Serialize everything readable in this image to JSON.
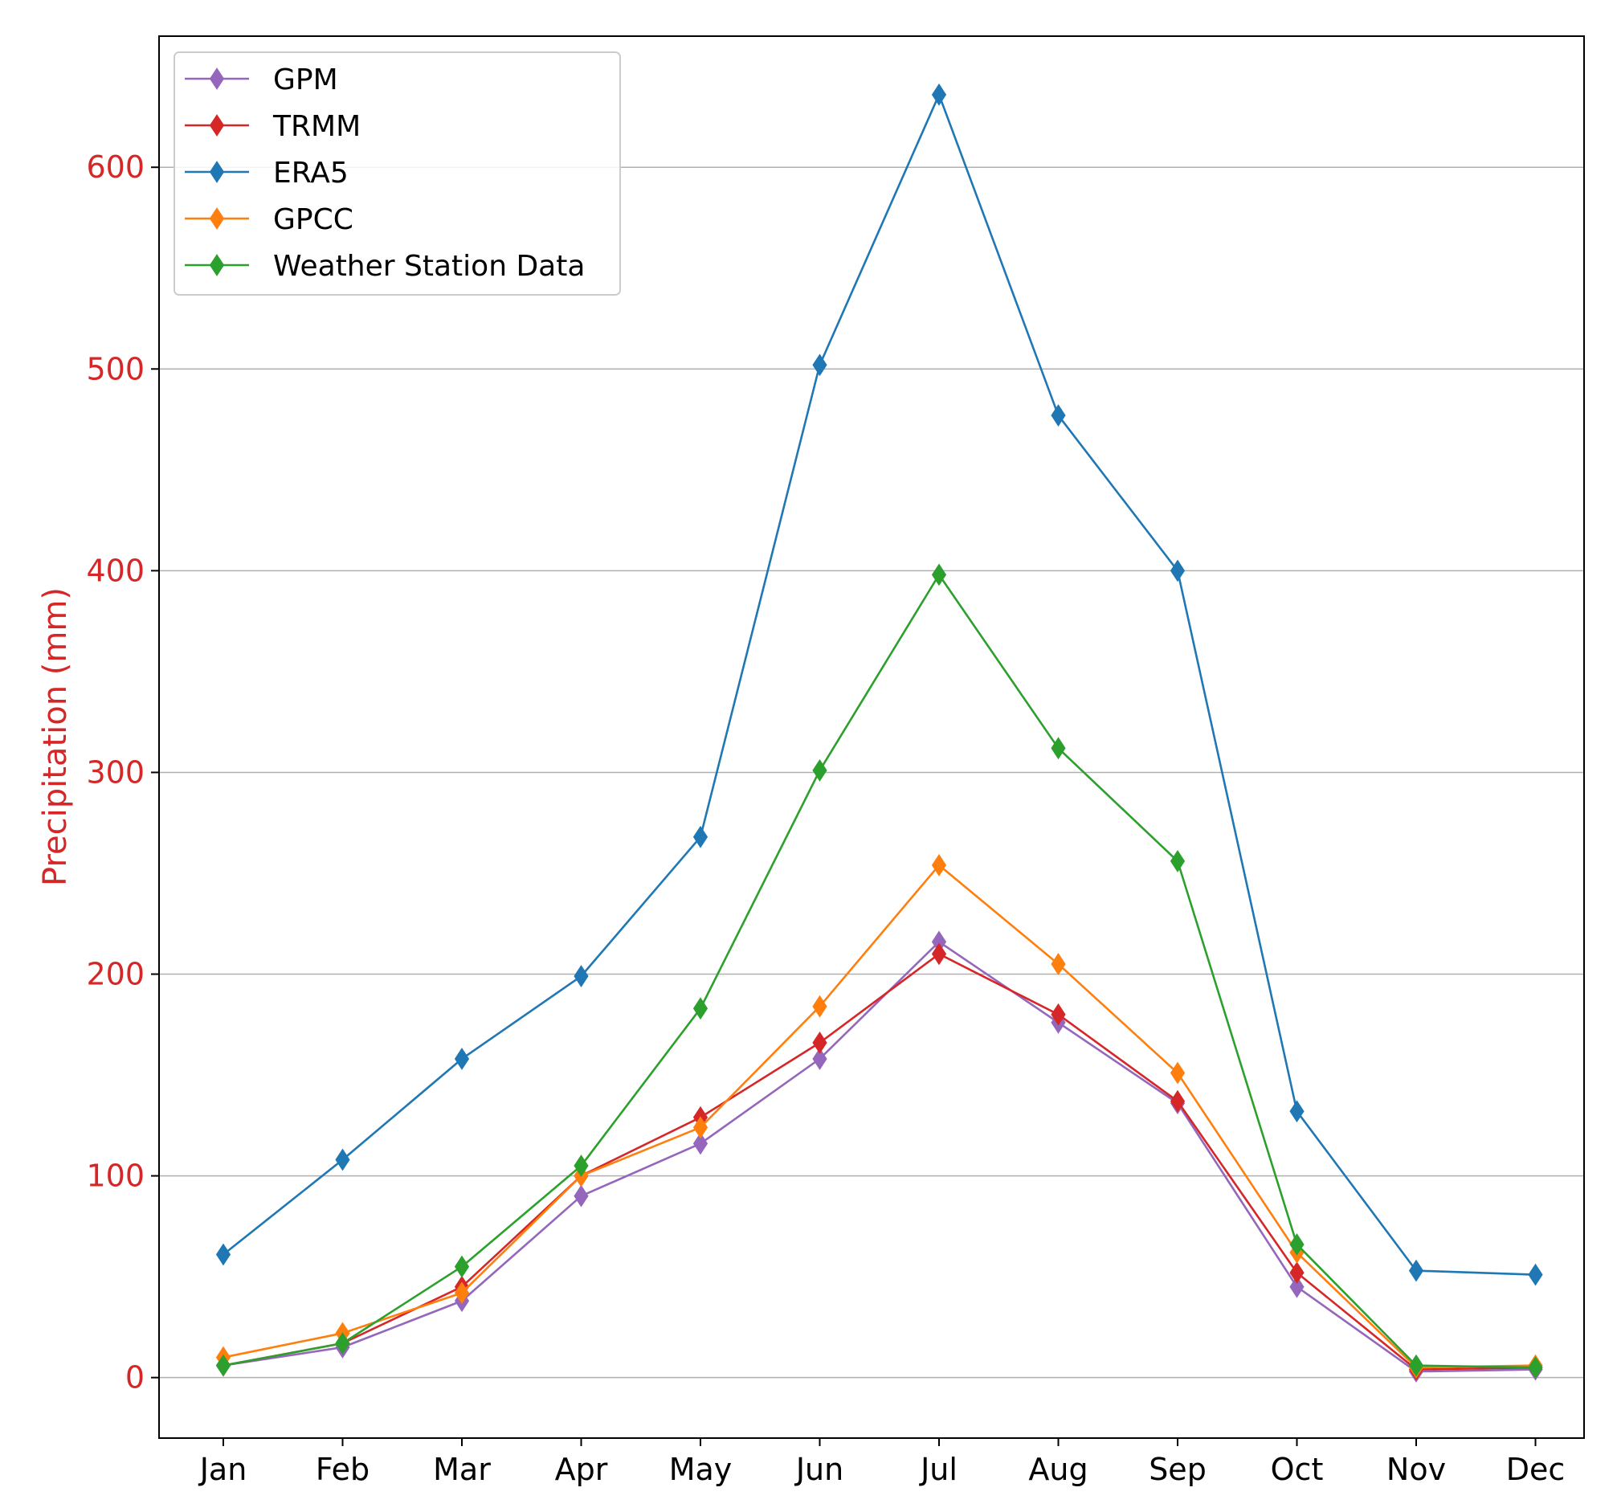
{
  "chart_data": {
    "type": "line",
    "title": "",
    "xlabel": "",
    "ylabel": "Precipitation (mm)",
    "categories": [
      "Jan",
      "Feb",
      "Mar",
      "Apr",
      "May",
      "Jun",
      "Jul",
      "Aug",
      "Sep",
      "Oct",
      "Nov",
      "Dec"
    ],
    "ylim": [
      -30,
      665
    ],
    "yticks": [
      0,
      100,
      200,
      300,
      400,
      500,
      600
    ],
    "grid": "horizontal",
    "legend_position": "top-left",
    "marker": "thin-diamond",
    "ytick_color": "#d62728",
    "ylabel_color": "#d62728",
    "series": [
      {
        "name": "GPM",
        "color": "#9467bd",
        "values": [
          6,
          15,
          38,
          90,
          116,
          158,
          216,
          176,
          136,
          45,
          3,
          4
        ]
      },
      {
        "name": "TRMM",
        "color": "#d62728",
        "values": [
          6,
          17,
          45,
          100,
          129,
          166,
          210,
          180,
          137,
          52,
          4,
          5
        ]
      },
      {
        "name": "ERA5",
        "color": "#1f77b4",
        "values": [
          61,
          108,
          158,
          199,
          268,
          502,
          636,
          477,
          400,
          132,
          53,
          51
        ]
      },
      {
        "name": "GPCC",
        "color": "#ff7f0e",
        "values": [
          10,
          22,
          42,
          100,
          124,
          184,
          254,
          205,
          151,
          62,
          5,
          6
        ]
      },
      {
        "name": "Weather Station Data",
        "color": "#2ca02c",
        "values": [
          6,
          17,
          55,
          105,
          183,
          301,
          398,
          312,
          256,
          66,
          6,
          5
        ]
      }
    ]
  }
}
